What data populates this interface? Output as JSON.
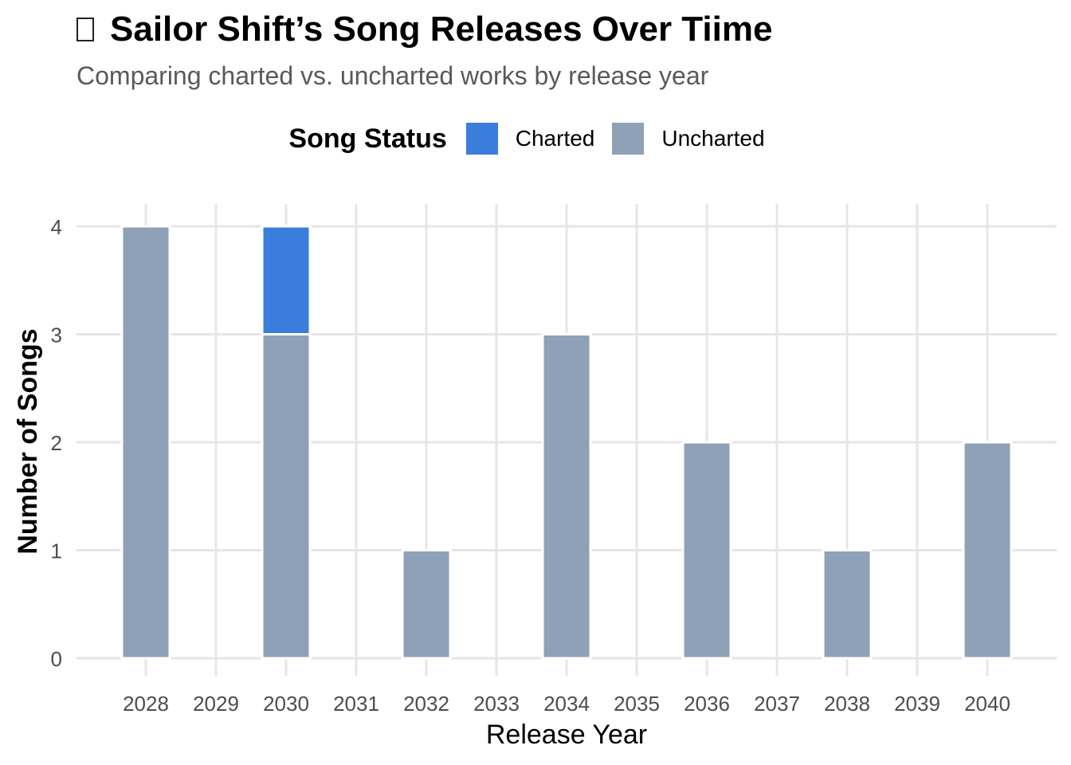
{
  "title": "Sailor Shift’s Song Releases Over Tiime",
  "subtitle": "Comparing charted vs. uncharted works by release year",
  "legend": {
    "title": "Song Status",
    "items": [
      {
        "label": "Charted",
        "color": "#3b7ddd"
      },
      {
        "label": "Uncharted",
        "color": "#8fa1b7"
      }
    ]
  },
  "chart_data": {
    "type": "bar",
    "stacked": true,
    "xlabel": "Release Year",
    "ylabel": "Number of Songs",
    "categories": [
      "2028",
      "2029",
      "2030",
      "2031",
      "2032",
      "2033",
      "2034",
      "2035",
      "2036",
      "2037",
      "2038",
      "2039",
      "2040"
    ],
    "series": [
      {
        "name": "Uncharted",
        "color": "#8fa1b7",
        "values": [
          4,
          0,
          3,
          0,
          1,
          0,
          3,
          0,
          2,
          0,
          1,
          0,
          2
        ]
      },
      {
        "name": "Charted",
        "color": "#3b7ddd",
        "values": [
          0,
          0,
          1,
          0,
          0,
          0,
          0,
          0,
          0,
          0,
          0,
          0,
          0
        ]
      }
    ],
    "yticks": [
      0,
      1,
      2,
      3,
      4
    ],
    "ylim": [
      0,
      4.2
    ],
    "grid": true,
    "legend_position": "top"
  }
}
